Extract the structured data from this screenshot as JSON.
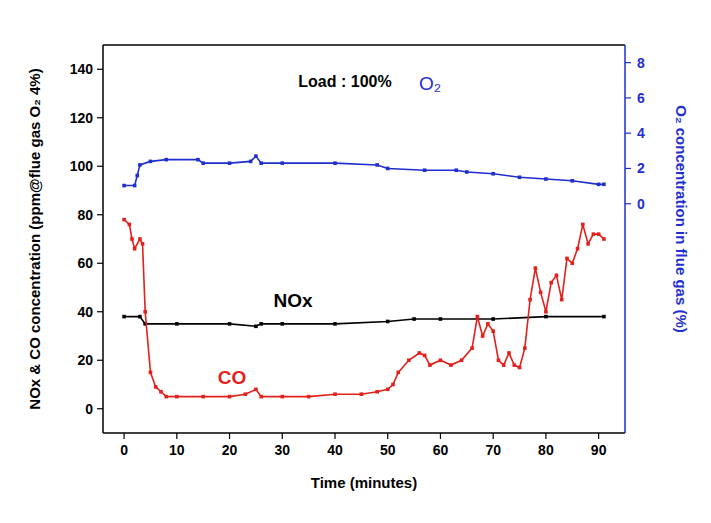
{
  "chart_data": {
    "type": "line",
    "annotation": "Load : 100%",
    "x_label": "Time (minutes)",
    "y_label": "NOx & CO concentration (ppm@flue gas O₂ 4%)",
    "y2_label": "O₂ concentration in flue gas (%)",
    "xlim": [
      -4,
      95
    ],
    "xticks": [
      0,
      10,
      20,
      30,
      40,
      50,
      60,
      70,
      80,
      90
    ],
    "ylim": [
      -10,
      150
    ],
    "yticks": [
      0,
      20,
      40,
      60,
      80,
      100,
      120,
      140
    ],
    "y2lim": [
      -13,
      9
    ],
    "y2ticks": [
      0,
      2,
      4,
      6,
      8
    ],
    "grid": false,
    "marker": "square",
    "series": [
      {
        "name": "O₂",
        "color": "#1f2fcf",
        "axis": "y2",
        "x": [
          0,
          2,
          2.5,
          3,
          5,
          8,
          14,
          15,
          20,
          24,
          25,
          26,
          30,
          40,
          48,
          50,
          57,
          63,
          65,
          70,
          75,
          80,
          85,
          90,
          91
        ],
        "values": [
          1.03,
          1.03,
          1.6,
          2.2,
          2.4,
          2.5,
          2.5,
          2.3,
          2.3,
          2.4,
          2.7,
          2.3,
          2.3,
          2.3,
          2.2,
          2.0,
          1.9,
          1.9,
          1.8,
          1.7,
          1.5,
          1.4,
          1.3,
          1.1,
          1.1
        ]
      },
      {
        "name": "NOx",
        "color": "#000000",
        "x": [
          0,
          3,
          4,
          10,
          20,
          25,
          26,
          30,
          40,
          50,
          55,
          60,
          70,
          80,
          91
        ],
        "values": [
          38,
          38,
          35,
          35,
          35,
          34,
          35,
          35,
          35,
          36,
          37,
          37,
          37,
          38,
          38
        ]
      },
      {
        "name": "CO",
        "color": "#e3201b",
        "x": [
          0,
          1,
          1.5,
          2,
          3,
          3.5,
          4,
          5,
          6,
          7,
          8,
          10,
          15,
          20,
          23,
          25,
          26,
          30,
          35,
          40,
          45,
          48,
          50,
          51,
          52,
          54,
          56,
          57,
          58,
          60,
          62,
          64,
          66,
          67,
          68,
          69,
          70,
          71,
          72,
          73,
          74,
          75,
          76,
          77,
          78,
          79,
          80,
          81,
          82,
          83,
          84,
          85,
          86,
          87,
          88,
          89,
          90,
          91
        ],
        "values": [
          78,
          76,
          70,
          66,
          70,
          68,
          40,
          15,
          9,
          7,
          5,
          5,
          5,
          5,
          6,
          8,
          5,
          5,
          5,
          6,
          6,
          7,
          8,
          10,
          15,
          20,
          23,
          22,
          18,
          20,
          18,
          20,
          25,
          38,
          30,
          35,
          32,
          20,
          18,
          23,
          18,
          17,
          25,
          45,
          58,
          48,
          40,
          52,
          55,
          45,
          62,
          60,
          66,
          76,
          68,
          72,
          72,
          70
        ]
      }
    ]
  }
}
